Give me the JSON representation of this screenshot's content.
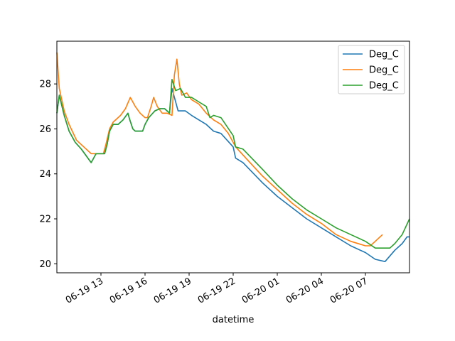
{
  "chart_data": {
    "type": "line",
    "title": "",
    "xlabel": "datetime",
    "ylabel": "",
    "x_unit": "datetime",
    "xlim": [
      "2024-06-19 10:00",
      "2024-06-20 10:00"
    ],
    "ylim": [
      19.6,
      29.9
    ],
    "yticks": [
      20,
      22,
      24,
      26,
      28
    ],
    "xticks": [
      {
        "x": "2024-06-19 13:00",
        "label": "06-19 13"
      },
      {
        "x": "2024-06-19 16:00",
        "label": "06-19 16"
      },
      {
        "x": "2024-06-19 19:00",
        "label": "06-19 19"
      },
      {
        "x": "2024-06-19 22:00",
        "label": "06-19 22"
      },
      {
        "x": "2024-06-20 01:00",
        "label": "06-20 01"
      },
      {
        "x": "2024-06-20 04:00",
        "label": "06-20 04"
      },
      {
        "x": "2024-06-20 07:00",
        "label": "06-20 07"
      }
    ],
    "legend_position": "top-right",
    "grid": false,
    "series": [
      {
        "name": "Deg_C",
        "color": "#1f77b4",
        "points": [
          [
            "2024-06-19 10:00",
            26.7
          ],
          [
            "2024-06-19 10:10",
            27.5
          ],
          [
            "2024-06-19 10:30",
            26.6
          ],
          [
            "2024-06-19 10:50",
            25.9
          ],
          [
            "2024-06-19 11:15",
            25.4
          ],
          [
            "2024-06-19 11:40",
            25.1
          ],
          [
            "2024-06-19 12:00",
            24.8
          ],
          [
            "2024-06-19 12:20",
            24.5
          ],
          [
            "2024-06-19 12:30",
            24.7
          ],
          [
            "2024-06-19 12:40",
            24.9
          ],
          [
            "2024-06-19 13:15",
            24.9
          ],
          [
            "2024-06-19 13:25",
            25.3
          ],
          [
            "2024-06-19 13:35",
            25.9
          ],
          [
            "2024-06-19 13:50",
            26.2
          ],
          [
            "2024-06-19 14:10",
            26.2
          ],
          [
            "2024-06-19 14:30",
            26.4
          ],
          [
            "2024-06-19 14:50",
            26.7
          ],
          [
            "2024-06-19 14:58",
            26.4
          ],
          [
            "2024-06-19 15:10",
            26.0
          ],
          [
            "2024-06-19 15:20",
            25.9
          ],
          [
            "2024-06-19 15:50",
            25.9
          ],
          [
            "2024-06-19 16:00",
            26.2
          ],
          [
            "2024-06-19 16:15",
            26.5
          ],
          [
            "2024-06-19 16:40",
            26.8
          ],
          [
            "2024-06-19 17:00",
            26.9
          ],
          [
            "2024-06-19 17:20",
            26.9
          ],
          [
            "2024-06-19 17:30",
            26.8
          ],
          [
            "2024-06-19 17:40",
            26.7
          ],
          [
            "2024-06-19 17:50",
            27.8
          ],
          [
            "2024-06-19 18:05",
            27.2
          ],
          [
            "2024-06-19 18:15",
            26.8
          ],
          [
            "2024-06-19 18:45",
            26.8
          ],
          [
            "2024-06-19 19:10",
            26.6
          ],
          [
            "2024-06-19 19:40",
            26.4
          ],
          [
            "2024-06-19 20:10",
            26.2
          ],
          [
            "2024-06-19 20:40",
            25.9
          ],
          [
            "2024-06-19 21:10",
            25.8
          ],
          [
            "2024-06-19 22:00",
            25.2
          ],
          [
            "2024-06-19 22:10",
            24.7
          ],
          [
            "2024-06-19 22:40",
            24.5
          ],
          [
            "2024-06-20 00:00",
            23.6
          ],
          [
            "2024-06-20 01:00",
            23.0
          ],
          [
            "2024-06-20 02:00",
            22.5
          ],
          [
            "2024-06-20 03:00",
            22.0
          ],
          [
            "2024-06-20 04:00",
            21.6
          ],
          [
            "2024-06-20 05:00",
            21.2
          ],
          [
            "2024-06-20 06:00",
            20.8
          ],
          [
            "2024-06-20 07:00",
            20.5
          ],
          [
            "2024-06-20 07:40",
            20.2
          ],
          [
            "2024-06-20 08:20",
            20.1
          ],
          [
            "2024-06-20 09:00",
            20.6
          ],
          [
            "2024-06-20 09:30",
            20.9
          ],
          [
            "2024-06-20 09:50",
            21.2
          ],
          [
            "2024-06-20 10:00",
            21.2
          ]
        ]
      },
      {
        "name": "Deg_C",
        "color": "#ff7f0e",
        "points": [
          [
            "2024-06-19 10:00",
            29.4
          ],
          [
            "2024-06-19 10:10",
            27.8
          ],
          [
            "2024-06-19 10:30",
            26.8
          ],
          [
            "2024-06-19 10:50",
            26.2
          ],
          [
            "2024-06-19 11:20",
            25.5
          ],
          [
            "2024-06-19 11:50",
            25.2
          ],
          [
            "2024-06-19 12:20",
            24.9
          ],
          [
            "2024-06-19 12:40",
            24.9
          ],
          [
            "2024-06-19 13:10",
            24.9
          ],
          [
            "2024-06-19 13:20",
            25.3
          ],
          [
            "2024-06-19 13:35",
            26.0
          ],
          [
            "2024-06-19 13:50",
            26.3
          ],
          [
            "2024-06-19 14:20",
            26.6
          ],
          [
            "2024-06-19 14:40",
            26.9
          ],
          [
            "2024-06-19 15:00",
            27.4
          ],
          [
            "2024-06-19 15:20",
            27.0
          ],
          [
            "2024-06-19 15:40",
            26.7
          ],
          [
            "2024-06-19 16:00",
            26.5
          ],
          [
            "2024-06-19 16:10",
            26.5
          ],
          [
            "2024-06-19 16:25",
            27.0
          ],
          [
            "2024-06-19 16:35",
            27.4
          ],
          [
            "2024-06-19 16:50",
            27.0
          ],
          [
            "2024-06-19 17:10",
            26.7
          ],
          [
            "2024-06-19 17:30",
            26.7
          ],
          [
            "2024-06-19 17:50",
            26.6
          ],
          [
            "2024-06-19 18:00",
            28.4
          ],
          [
            "2024-06-19 18:10",
            29.1
          ],
          [
            "2024-06-19 18:20",
            28.0
          ],
          [
            "2024-06-19 18:30",
            27.5
          ],
          [
            "2024-06-19 18:50",
            27.6
          ],
          [
            "2024-06-19 19:10",
            27.3
          ],
          [
            "2024-06-19 19:40",
            27.1
          ],
          [
            "2024-06-19 20:10",
            26.7
          ],
          [
            "2024-06-19 20:40",
            26.4
          ],
          [
            "2024-06-19 21:10",
            26.2
          ],
          [
            "2024-06-19 21:40",
            25.8
          ],
          [
            "2024-06-19 22:10",
            25.2
          ],
          [
            "2024-06-19 23:00",
            24.6
          ],
          [
            "2024-06-20 00:00",
            23.9
          ],
          [
            "2024-06-20 01:00",
            23.3
          ],
          [
            "2024-06-20 02:00",
            22.7
          ],
          [
            "2024-06-20 03:00",
            22.2
          ],
          [
            "2024-06-20 04:00",
            21.8
          ],
          [
            "2024-06-20 05:00",
            21.3
          ],
          [
            "2024-06-20 06:00",
            21.0
          ],
          [
            "2024-06-20 07:00",
            20.8
          ],
          [
            "2024-06-20 07:20",
            20.8
          ],
          [
            "2024-06-20 07:40",
            21.0
          ],
          [
            "2024-06-20 08:10",
            21.3
          ]
        ]
      },
      {
        "name": "Deg_C",
        "color": "#2ca02c",
        "points": [
          [
            "2024-06-19 10:00",
            26.7
          ],
          [
            "2024-06-19 10:10",
            27.5
          ],
          [
            "2024-06-19 10:30",
            26.6
          ],
          [
            "2024-06-19 10:50",
            25.9
          ],
          [
            "2024-06-19 11:15",
            25.4
          ],
          [
            "2024-06-19 11:40",
            25.1
          ],
          [
            "2024-06-19 12:00",
            24.8
          ],
          [
            "2024-06-19 12:20",
            24.5
          ],
          [
            "2024-06-19 12:30",
            24.7
          ],
          [
            "2024-06-19 12:40",
            24.9
          ],
          [
            "2024-06-19 13:15",
            24.9
          ],
          [
            "2024-06-19 13:25",
            25.3
          ],
          [
            "2024-06-19 13:35",
            25.9
          ],
          [
            "2024-06-19 13:50",
            26.2
          ],
          [
            "2024-06-19 14:10",
            26.2
          ],
          [
            "2024-06-19 14:30",
            26.4
          ],
          [
            "2024-06-19 14:50",
            26.7
          ],
          [
            "2024-06-19 14:58",
            26.4
          ],
          [
            "2024-06-19 15:10",
            26.0
          ],
          [
            "2024-06-19 15:20",
            25.9
          ],
          [
            "2024-06-19 15:50",
            25.9
          ],
          [
            "2024-06-19 16:00",
            26.2
          ],
          [
            "2024-06-19 16:15",
            26.5
          ],
          [
            "2024-06-19 16:40",
            26.8
          ],
          [
            "2024-06-19 17:00",
            26.9
          ],
          [
            "2024-06-19 17:20",
            26.9
          ],
          [
            "2024-06-19 17:30",
            26.8
          ],
          [
            "2024-06-19 17:40",
            26.7
          ],
          [
            "2024-06-19 17:50",
            28.2
          ],
          [
            "2024-06-19 18:05",
            27.7
          ],
          [
            "2024-06-19 18:25",
            27.8
          ],
          [
            "2024-06-19 18:45",
            27.4
          ],
          [
            "2024-06-19 19:10",
            27.4
          ],
          [
            "2024-06-19 19:40",
            27.2
          ],
          [
            "2024-06-19 20:10",
            27.0
          ],
          [
            "2024-06-19 20:25",
            26.5
          ],
          [
            "2024-06-19 20:40",
            26.6
          ],
          [
            "2024-06-19 21:10",
            26.5
          ],
          [
            "2024-06-19 22:00",
            25.7
          ],
          [
            "2024-06-19 22:10",
            25.2
          ],
          [
            "2024-06-19 22:40",
            25.1
          ],
          [
            "2024-06-20 00:00",
            24.2
          ],
          [
            "2024-06-20 01:00",
            23.5
          ],
          [
            "2024-06-20 02:00",
            22.9
          ],
          [
            "2024-06-20 03:00",
            22.4
          ],
          [
            "2024-06-20 04:00",
            22.0
          ],
          [
            "2024-06-20 05:00",
            21.6
          ],
          [
            "2024-06-20 06:00",
            21.3
          ],
          [
            "2024-06-20 07:00",
            21.0
          ],
          [
            "2024-06-20 07:40",
            20.7
          ],
          [
            "2024-06-20 08:40",
            20.7
          ],
          [
            "2024-06-20 09:00",
            20.9
          ],
          [
            "2024-06-20 09:30",
            21.3
          ],
          [
            "2024-06-20 10:00",
            22.0
          ]
        ]
      }
    ]
  }
}
